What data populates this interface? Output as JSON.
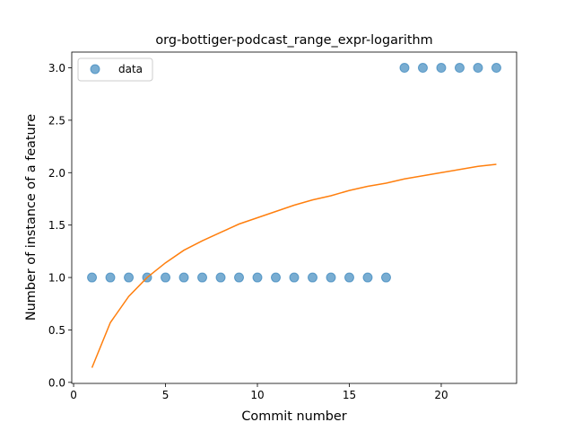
{
  "chart_data": {
    "type": "scatter",
    "title": "org-bottiger-podcast_range_expr-logarithm",
    "xlabel": "Commit number",
    "ylabel": "Number of instance of a feature",
    "xlim": [
      -0.1,
      24.1
    ],
    "ylim": [
      -0.01,
      3.15
    ],
    "xticks": [
      0,
      5,
      10,
      15,
      20
    ],
    "yticks": [
      0.0,
      0.5,
      1.0,
      1.5,
      2.0,
      2.5,
      3.0
    ],
    "ytick_labels": [
      "0.0",
      "0.5",
      "1.0",
      "1.5",
      "2.0",
      "2.5",
      "3.0"
    ],
    "grid": false,
    "legend": {
      "placement": "top-left",
      "entries": [
        "data"
      ]
    },
    "series": [
      {
        "name": "data",
        "kind": "scatter",
        "color": "#1f77b4",
        "x": [
          1,
          2,
          3,
          4,
          5,
          6,
          7,
          8,
          9,
          10,
          11,
          12,
          13,
          14,
          15,
          16,
          17,
          18,
          19,
          20,
          21,
          22,
          23
        ],
        "y": [
          1,
          1,
          1,
          1,
          1,
          1,
          1,
          1,
          1,
          1,
          1,
          1,
          1,
          1,
          1,
          1,
          1,
          3,
          3,
          3,
          3,
          3,
          3
        ]
      },
      {
        "kind": "line",
        "color": "#ff7f0e",
        "x": [
          1,
          2,
          3,
          4,
          5,
          6,
          7,
          8,
          9,
          10,
          11,
          12,
          13,
          14,
          15,
          16,
          17,
          18,
          19,
          20,
          21,
          22,
          23
        ],
        "y": [
          0.14,
          0.57,
          0.82,
          1.0,
          1.14,
          1.26,
          1.35,
          1.43,
          1.51,
          1.57,
          1.63,
          1.69,
          1.74,
          1.78,
          1.83,
          1.87,
          1.9,
          1.94,
          1.97,
          2.0,
          2.03,
          2.06,
          2.08
        ]
      }
    ]
  }
}
